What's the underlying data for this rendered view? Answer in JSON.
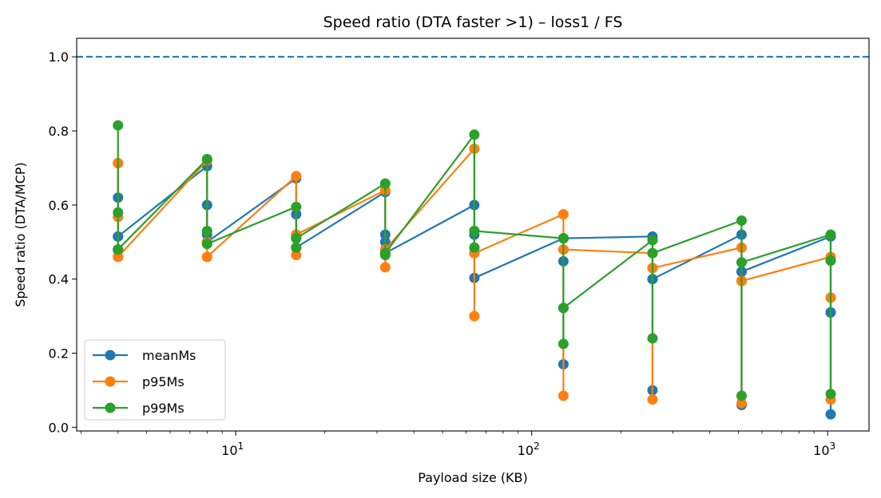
{
  "chart_data": {
    "type": "line",
    "title": "Speed ratio (DTA faster >1) – loss1 / FS",
    "xlabel": "Payload size (KB)",
    "ylabel": "Speed ratio (DTA/MCP)",
    "x_scale": "log",
    "xlim": [
      2.9,
      1380
    ],
    "ylim": [
      -0.01,
      1.05
    ],
    "x_ticks": [
      {
        "value": 10,
        "base": "10",
        "exp": "1"
      },
      {
        "value": 100,
        "base": "10",
        "exp": "2"
      },
      {
        "value": 1000,
        "base": "10",
        "exp": "3"
      }
    ],
    "y_ticks": [
      0.0,
      0.2,
      0.4,
      0.6,
      0.8,
      1.0
    ],
    "y_tick_labels": [
      "0.0",
      "0.2",
      "0.4",
      "0.6",
      "0.8",
      "1.0"
    ],
    "reference_line": {
      "y": 1.0,
      "style": "dashed",
      "color": "#1f77b4"
    },
    "grid": false,
    "legend_position": "lower-left",
    "series": [
      {
        "name": "meanMs",
        "color": "#1f77b4",
        "x": [
          4,
          4,
          4,
          4,
          4,
          8,
          8,
          8,
          8,
          16,
          16,
          16,
          16,
          32,
          32,
          32,
          32,
          64,
          64,
          64,
          64,
          128,
          128,
          128,
          128,
          256,
          256,
          256,
          256,
          512,
          512,
          512,
          512,
          1024,
          1024,
          1024,
          1024
        ],
        "y": [
          0.713,
          0.62,
          0.515,
          0.48,
          0.515,
          0.705,
          0.6,
          0.52,
          0.5,
          0.672,
          0.575,
          0.515,
          0.485,
          0.635,
          0.52,
          0.5,
          0.47,
          0.6,
          0.52,
          0.485,
          0.403,
          0.51,
          0.448,
          0.17,
          0.51,
          0.515,
          0.4,
          0.1,
          0.4,
          0.52,
          0.42,
          0.06,
          0.42,
          0.515,
          0.31,
          0.035,
          0.31
        ]
      },
      {
        "name": "p95Ms",
        "color": "#ff7f0e",
        "x": [
          4,
          4,
          4,
          4,
          4,
          8,
          8,
          8,
          8,
          16,
          16,
          16,
          16,
          32,
          32,
          32,
          32,
          64,
          64,
          64,
          64,
          128,
          128,
          128,
          128,
          256,
          256,
          256,
          256,
          512,
          512,
          512,
          512,
          1024,
          1024,
          1024,
          1024
        ],
        "y": [
          0.713,
          0.568,
          0.46,
          0.48,
          0.46,
          0.72,
          0.46,
          0.5,
          0.46,
          0.678,
          0.52,
          0.465,
          0.52,
          0.64,
          0.48,
          0.432,
          0.48,
          0.752,
          0.47,
          0.3,
          0.47,
          0.575,
          0.48,
          0.085,
          0.48,
          0.47,
          0.43,
          0.075,
          0.43,
          0.485,
          0.395,
          0.065,
          0.395,
          0.46,
          0.35,
          0.075,
          0.35
        ]
      },
      {
        "name": "p99Ms",
        "color": "#2ca02c",
        "x": [
          4,
          4,
          4,
          4,
          4,
          8,
          8,
          8,
          8,
          16,
          16,
          16,
          16,
          32,
          32,
          32,
          32,
          64,
          64,
          64,
          64,
          128,
          128,
          128,
          128,
          256,
          256,
          256,
          256,
          512,
          512,
          512,
          512,
          1024,
          1024,
          1024,
          1024
        ],
        "y": [
          0.815,
          0.58,
          0.48,
          0.48,
          0.48,
          0.724,
          0.53,
          0.495,
          0.495,
          0.595,
          0.51,
          0.485,
          0.51,
          0.658,
          0.47,
          0.465,
          0.47,
          0.79,
          0.53,
          0.485,
          0.53,
          0.51,
          0.322,
          0.225,
          0.322,
          0.505,
          0.47,
          0.24,
          0.47,
          0.558,
          0.445,
          0.085,
          0.445,
          0.52,
          0.45,
          0.09,
          0.45
        ]
      }
    ]
  }
}
